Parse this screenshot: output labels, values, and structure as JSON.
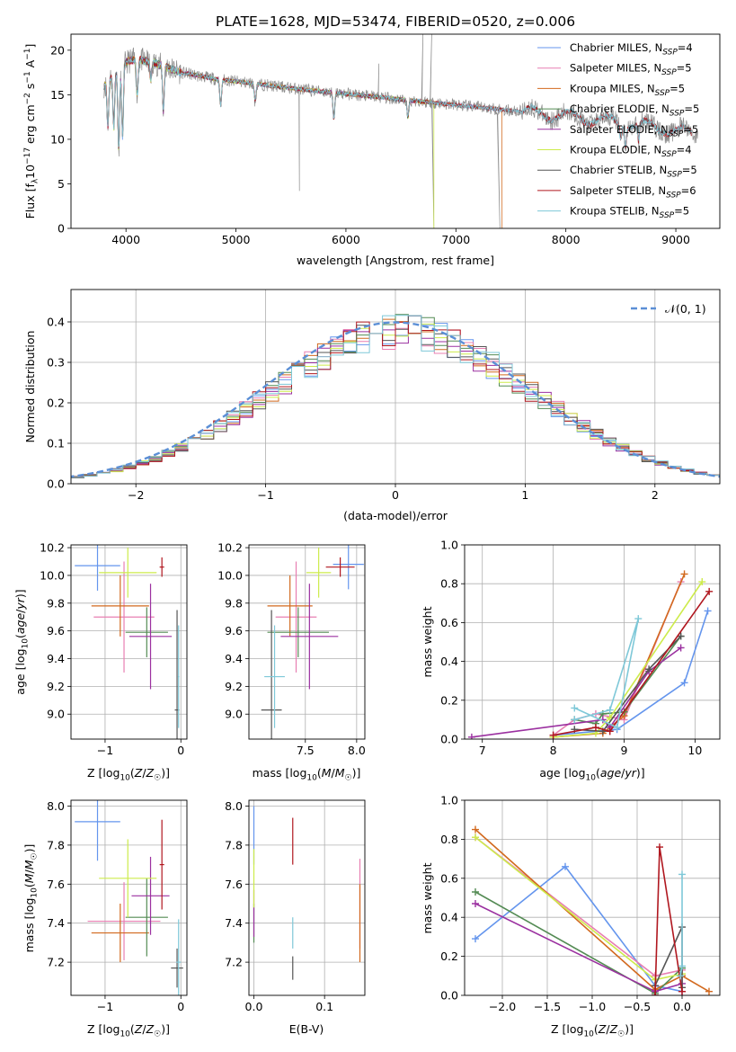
{
  "figure_title": "PLATE=1628, MJD=53474, FIBERID=0520, z=0.006",
  "colors": {
    "Chabrier MILES": "#6495ED",
    "Salpeter MILES": "#E87FB2",
    "Kroupa MILES": "#D2691E",
    "Chabrier ELODIE": "#548B54",
    "Salpeter ELODIE": "#9B30A0",
    "Kroupa ELODIE": "#CDEB4B",
    "Chabrier STELIB": "#555555",
    "Salpeter STELIB": "#B0171F",
    "Kroupa STELIB": "#7EC8D8",
    "data": "#8C8C8C",
    "normal": "#5B8FD6"
  },
  "chart_data": [
    {
      "id": "spectrum",
      "type": "line",
      "title": "PLATE=1628, MJD=53474, FIBERID=0520, z=0.006",
      "xlabel": "wavelength [Angstrom, rest frame]",
      "ylabel": "Flux [f",
      "ylabel_parts": [
        "Flux [f",
        "λ",
        "10",
        "−17",
        " erg cm",
        "−2",
        " s",
        "−1",
        " A",
        "−1",
        "]"
      ],
      "xlim": [
        3500,
        9400
      ],
      "ylim": [
        0,
        21.8
      ],
      "xticks": [
        4000,
        5000,
        6000,
        7000,
        8000,
        9000
      ],
      "yticks": [
        0,
        5,
        10,
        15,
        20
      ],
      "grid": false,
      "legend_position": "top-right",
      "legend": [
        {
          "name": "Chabrier MILES",
          "sub": "SSP",
          "n": "=4"
        },
        {
          "name": "Salpeter MILES",
          "sub": "SSP",
          "n": "=5"
        },
        {
          "name": "Kroupa MILES",
          "sub": "SSP",
          "n": "=5"
        },
        {
          "name": "Chabrier ELODIE",
          "sub": "SSP",
          "n": "=5"
        },
        {
          "name": "Salpeter ELODIE",
          "sub": "SSP",
          "n": "=5"
        },
        {
          "name": "Kroupa ELODIE",
          "sub": "SSP",
          "n": "=4"
        },
        {
          "name": "Chabrier STELIB",
          "sub": "SSP",
          "n": "=5"
        },
        {
          "name": "Salpeter STELIB",
          "sub": "SSP",
          "n": "=6"
        },
        {
          "name": "Kroupa STELIB",
          "sub": "SSP",
          "n": "=5"
        }
      ],
      "continuum": {
        "x": [
          3800,
          3900,
          4000,
          4100,
          4300,
          4500,
          4800,
          5200,
          5600,
          6000,
          6400,
          6800,
          7200,
          7600,
          8000,
          8400,
          8800,
          9150
        ],
        "y": [
          16.0,
          17.5,
          18.7,
          19.0,
          18.4,
          17.5,
          16.8,
          16.2,
          15.6,
          15.1,
          14.6,
          14.1,
          13.6,
          13.1,
          12.6,
          12.0,
          11.4,
          10.6
        ]
      },
      "data_range": [
        3800,
        9200
      ],
      "model_ranges": {
        "MILES": [
          3800,
          7420
        ],
        "ELODIE": [
          3800,
          6800
        ],
        "STELIB": [
          3800,
          9150
        ]
      },
      "absorption_lines": [
        {
          "x": 3835,
          "depth": 5
        },
        {
          "x": 3889,
          "depth": 6
        },
        {
          "x": 3934,
          "depth": 9
        },
        {
          "x": 3969,
          "depth": 8
        },
        {
          "x": 4102,
          "depth": 4
        },
        {
          "x": 4227,
          "depth": 2
        },
        {
          "x": 4340,
          "depth": 5
        },
        {
          "x": 4861,
          "depth": 3
        },
        {
          "x": 5175,
          "depth": 2
        },
        {
          "x": 5890,
          "depth": 3
        },
        {
          "x": 6563,
          "depth": 2
        },
        {
          "x": 8498,
          "depth": 1.5
        },
        {
          "x": 8542,
          "depth": 2
        },
        {
          "x": 8662,
          "depth": 2
        }
      ],
      "spikes": [
        {
          "x": 5577,
          "to": 4.2
        },
        {
          "x": 6300,
          "to": 18.5
        },
        {
          "x": 6700,
          "to": 21.8
        },
        {
          "x": 6780,
          "to": 21.8
        },
        {
          "x": 6800,
          "to": 0
        },
        {
          "x": 7400,
          "to": 0
        }
      ]
    },
    {
      "id": "residuals",
      "type": "step",
      "xlabel": "(data-model)/error",
      "ylabel": "Normed distribution",
      "xlim": [
        -2.5,
        2.5
      ],
      "ylim": [
        0,
        0.48
      ],
      "xticks": [
        -2,
        -1,
        0,
        1,
        2
      ],
      "yticks": [
        0.0,
        0.1,
        0.2,
        0.3,
        0.4
      ],
      "grid": true,
      "legend_position": "top-right",
      "legend": [
        {
          "name": "𝒩(0, 1)",
          "style": "dashed"
        }
      ],
      "bin_width": 0.1
    },
    {
      "id": "age_vs_Z",
      "type": "errorbar",
      "xlabel": "Z [log",
      "ylabel": "age  [log",
      "xlim": [
        -1.45,
        0.08
      ],
      "ylim": [
        8.82,
        10.22
      ],
      "xticks": [
        -1,
        0
      ],
      "yticks": [
        9.0,
        9.2,
        9.4,
        9.6,
        9.8,
        10.0,
        10.2
      ],
      "grid": true,
      "points": [
        {
          "model": "Chabrier MILES",
          "x": -1.1,
          "xerr": 0.3,
          "y": 10.07,
          "yerr": 0.18
        },
        {
          "model": "Salpeter MILES",
          "x": -0.75,
          "xerr": 0.4,
          "y": 9.7,
          "yerr": 0.4
        },
        {
          "model": "Kroupa MILES",
          "x": -0.8,
          "xerr": 0.38,
          "y": 9.78,
          "yerr": 0.22
        },
        {
          "model": "Chabrier ELODIE",
          "x": -0.45,
          "xerr": 0.28,
          "y": 9.59,
          "yerr": 0.18
        },
        {
          "model": "Salpeter ELODIE",
          "x": -0.4,
          "xerr": 0.28,
          "y": 9.56,
          "yerr": 0.38
        },
        {
          "model": "Kroupa ELODIE",
          "x": -0.7,
          "xerr": 0.38,
          "y": 10.02,
          "yerr": 0.18
        },
        {
          "model": "Chabrier STELIB",
          "x": -0.05,
          "xerr": 0.03,
          "y": 9.03,
          "yerr": 0.72
        },
        {
          "model": "Salpeter STELIB",
          "x": -0.25,
          "xerr": 0.03,
          "y": 10.06,
          "yerr": 0.07
        },
        {
          "model": "Kroupa STELIB",
          "x": -0.03,
          "xerr": 0.01,
          "y": 9.27,
          "yerr": 0.37
        }
      ]
    },
    {
      "id": "age_vs_mass",
      "type": "errorbar",
      "xlabel": "mass [log",
      "ylabel": "",
      "xlim": [
        6.95,
        8.08
      ],
      "ylim": [
        8.82,
        10.22
      ],
      "xticks": [
        7.5,
        8.0
      ],
      "yticks": [
        9.0,
        9.2,
        9.4,
        9.6,
        9.8,
        10.0,
        10.2
      ],
      "grid": true,
      "points": [
        {
          "model": "Chabrier MILES",
          "x": 7.92,
          "xerr": 0.15,
          "y": 10.08,
          "yerr": 0.18
        },
        {
          "model": "Salpeter MILES",
          "x": 7.41,
          "xerr": 0.2,
          "y": 9.7,
          "yerr": 0.4
        },
        {
          "model": "Kroupa MILES",
          "x": 7.35,
          "xerr": 0.22,
          "y": 9.78,
          "yerr": 0.22
        },
        {
          "model": "Chabrier ELODIE",
          "x": 7.43,
          "xerr": 0.3,
          "y": 9.59,
          "yerr": 0.18
        },
        {
          "model": "Salpeter ELODIE",
          "x": 7.54,
          "xerr": 0.28,
          "y": 9.56,
          "yerr": 0.38
        },
        {
          "model": "Kroupa ELODIE",
          "x": 7.63,
          "xerr": 0.12,
          "y": 10.02,
          "yerr": 0.18
        },
        {
          "model": "Chabrier STELIB",
          "x": 7.17,
          "xerr": 0.1,
          "y": 9.03,
          "yerr": 0.72
        },
        {
          "model": "Salpeter STELIB",
          "x": 7.84,
          "xerr": 0.14,
          "y": 10.06,
          "yerr": 0.07
        },
        {
          "model": "Kroupa STELIB",
          "x": 7.2,
          "xerr": 0.1,
          "y": 9.27,
          "yerr": 0.37
        }
      ]
    },
    {
      "id": "weight_vs_age",
      "type": "line",
      "xlabel": "age  [log",
      "ylabel": "mass weight",
      "xlim": [
        6.75,
        10.35
      ],
      "ylim": [
        0,
        1.0
      ],
      "xticks": [
        7,
        8,
        9,
        10
      ],
      "yticks": [
        0.0,
        0.2,
        0.4,
        0.6,
        0.8,
        1.0
      ],
      "grid": true,
      "series": [
        {
          "model": "Chabrier MILES",
          "x": [
            8.0,
            8.9,
            9.85,
            10.18
          ],
          "y": [
            0.02,
            0.05,
            0.29,
            0.66
          ]
        },
        {
          "model": "Salpeter MILES",
          "x": [
            8.0,
            8.3,
            8.6,
            9.0,
            9.8
          ],
          "y": [
            0.02,
            0.1,
            0.13,
            0.1,
            0.81
          ]
        },
        {
          "model": "Kroupa MILES",
          "x": [
            8.0,
            8.7,
            9.0,
            9.85
          ],
          "y": [
            0.01,
            0.03,
            0.12,
            0.85
          ]
        },
        {
          "model": "Chabrier ELODIE",
          "x": [
            8.3,
            8.6,
            8.7,
            9.0,
            9.8
          ],
          "y": [
            0.1,
            0.08,
            0.13,
            0.14,
            0.53
          ]
        },
        {
          "model": "Salpeter ELODIE",
          "x": [
            6.85,
            8.7,
            8.8,
            9.35,
            9.8
          ],
          "y": [
            0.01,
            0.1,
            0.06,
            0.35,
            0.47
          ]
        },
        {
          "model": "Kroupa ELODIE",
          "x": [
            8.0,
            8.6,
            8.8,
            10.1
          ],
          "y": [
            0.01,
            0.03,
            0.11,
            0.81
          ]
        },
        {
          "model": "Chabrier STELIB",
          "x": [
            8.3,
            8.7,
            9.35,
            9.8
          ],
          "y": [
            0.05,
            0.04,
            0.36,
            0.53
          ]
        },
        {
          "model": "Salpeter STELIB",
          "x": [
            8.0,
            8.6,
            8.8,
            10.2
          ],
          "y": [
            0.02,
            0.06,
            0.04,
            0.76
          ]
        },
        {
          "model": "Kroupa STELIB",
          "x": [
            8.3,
            8.9,
            9.2,
            8.8,
            8.3
          ],
          "y": [
            0.16,
            0.06,
            0.62,
            0.15,
            0.1
          ]
        }
      ]
    },
    {
      "id": "mass_vs_Z",
      "type": "errorbar",
      "xlabel": "Z [log",
      "ylabel": "mass [log",
      "xlim": [
        -1.45,
        0.08
      ],
      "ylim": [
        7.03,
        8.03
      ],
      "xticks": [
        -1,
        0
      ],
      "yticks": [
        7.2,
        7.4,
        7.6,
        7.8,
        8.0
      ],
      "grid": true,
      "points": [
        {
          "model": "Chabrier MILES",
          "x": -1.1,
          "xerr": 0.3,
          "y": 7.92,
          "yerr": 0.2
        },
        {
          "model": "Salpeter MILES",
          "x": -0.75,
          "xerr": 0.48,
          "y": 7.41,
          "yerr": 0.2
        },
        {
          "model": "Kroupa MILES",
          "x": -0.8,
          "xerr": 0.38,
          "y": 7.35,
          "yerr": 0.15
        },
        {
          "model": "Chabrier ELODIE",
          "x": -0.45,
          "xerr": 0.28,
          "y": 7.43,
          "yerr": 0.2
        },
        {
          "model": "Salpeter ELODIE",
          "x": -0.4,
          "xerr": 0.25,
          "y": 7.54,
          "yerr": 0.2
        },
        {
          "model": "Kroupa ELODIE",
          "x": -0.7,
          "xerr": 0.38,
          "y": 7.63,
          "yerr": 0.2
        },
        {
          "model": "Chabrier STELIB",
          "x": -0.05,
          "xerr": 0.08,
          "y": 7.17,
          "yerr": 0.1
        },
        {
          "model": "Salpeter STELIB",
          "x": -0.25,
          "xerr": 0.03,
          "y": 7.7,
          "yerr": 0.23
        },
        {
          "model": "Kroupa STELIB",
          "x": -0.03,
          "xerr": 0.03,
          "y": 7.2,
          "yerr": 0.22
        }
      ]
    },
    {
      "id": "mass_vs_EBV",
      "type": "errorbar",
      "xlabel": "E(B-V)",
      "ylabel": "",
      "xlim": [
        -0.007,
        0.157
      ],
      "ylim": [
        7.03,
        8.03
      ],
      "xticks": [
        0.0,
        0.1
      ],
      "yticks": [
        7.2,
        7.4,
        7.6,
        7.8,
        8.0
      ],
      "grid": true,
      "points": [
        {
          "model": "Chabrier MILES",
          "x": 0.0,
          "y": 7.85,
          "yerr": 0.15
        },
        {
          "model": "Salpeter MILES",
          "x": 0.15,
          "y": 7.5,
          "yerr": 0.23
        },
        {
          "model": "Kroupa MILES",
          "x": 0.15,
          "y": 7.4,
          "yerr": 0.2
        },
        {
          "model": "Chabrier ELODIE",
          "x": 0.0,
          "y": 7.4,
          "yerr": 0.1
        },
        {
          "model": "Salpeter ELODIE",
          "x": 0.0,
          "y": 7.45,
          "yerr": 0.12
        },
        {
          "model": "Kroupa ELODIE",
          "x": 0.0,
          "y": 7.63,
          "yerr": 0.15
        },
        {
          "model": "Chabrier STELIB",
          "x": 0.055,
          "y": 7.17,
          "yerr": 0.06
        },
        {
          "model": "Salpeter STELIB",
          "x": 0.055,
          "y": 7.82,
          "yerr": 0.12
        },
        {
          "model": "Kroupa STELIB",
          "x": 0.055,
          "y": 7.35,
          "yerr": 0.08
        }
      ]
    },
    {
      "id": "weight_vs_Z",
      "type": "line",
      "xlabel": "Z [log",
      "ylabel": "mass weight",
      "xlim": [
        -2.42,
        0.42
      ],
      "ylim": [
        0,
        1.0
      ],
      "xticks": [
        -2.0,
        -1.5,
        -1.0,
        -0.5,
        0.0
      ],
      "yticks": [
        0.0,
        0.2,
        0.4,
        0.6,
        0.8,
        1.0
      ],
      "grid": true,
      "series": [
        {
          "model": "Chabrier MILES",
          "x": [
            -2.3,
            -1.3,
            -0.3,
            0.0
          ],
          "y": [
            0.29,
            0.66,
            0.05,
            0.02
          ]
        },
        {
          "model": "Salpeter MILES",
          "x": [
            -2.3,
            -0.3,
            0.0,
            0.0
          ],
          "y": [
            0.81,
            0.1,
            0.13,
            0.02
          ]
        },
        {
          "model": "Kroupa MILES",
          "x": [
            -2.3,
            -0.3,
            0.0,
            0.3
          ],
          "y": [
            0.85,
            0.03,
            0.1,
            0.02
          ]
        },
        {
          "model": "Chabrier ELODIE",
          "x": [
            -2.3,
            -0.3,
            0.0
          ],
          "y": [
            0.53,
            0.01,
            0.14
          ]
        },
        {
          "model": "Salpeter ELODIE",
          "x": [
            -2.3,
            -0.3,
            0.0
          ],
          "y": [
            0.47,
            0.02,
            0.06
          ]
        },
        {
          "model": "Kroupa ELODIE",
          "x": [
            -2.3,
            -0.3,
            0.0
          ],
          "y": [
            0.81,
            0.08,
            0.11
          ]
        },
        {
          "model": "Chabrier STELIB",
          "x": [
            -0.3,
            0.0,
            0.0
          ],
          "y": [
            0.05,
            0.35,
            0.04
          ]
        },
        {
          "model": "Salpeter STELIB",
          "x": [
            -0.3,
            -0.25,
            0.0
          ],
          "y": [
            0.0,
            0.76,
            0.02
          ]
        },
        {
          "model": "Kroupa STELIB",
          "x": [
            0.0,
            0.0,
            -0.02
          ],
          "y": [
            0.62,
            0.15,
            0.1
          ]
        }
      ]
    }
  ]
}
